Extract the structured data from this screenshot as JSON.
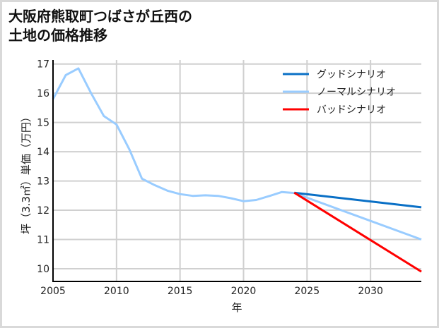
{
  "title_line1": "大阪府熊取町つばさが丘西の",
  "title_line2": "土地の価格推移",
  "chart_data": {
    "type": "line",
    "title": "大阪府熊取町つばさが丘西の土地の価格推移",
    "xlabel": "年",
    "ylabel": "坪（3.3㎡）単価（万円）",
    "xlim": [
      2005,
      2034
    ],
    "ylim": [
      9.6,
      17.2
    ],
    "xticks": [
      2005,
      2010,
      2015,
      2020,
      2025,
      2030
    ],
    "yticks": [
      10,
      11,
      12,
      13,
      14,
      15,
      16,
      17
    ],
    "grid": true,
    "legend_position": "upper right",
    "series": [
      {
        "name": "グッドシナリオ",
        "color": "#0a70c6",
        "x": [
          2024,
          2034
        ],
        "values": [
          12.6,
          12.1
        ]
      },
      {
        "name": "ノーマルシナリオ",
        "color": "#99ccff",
        "x": [
          2005,
          2006,
          2007,
          2008,
          2009,
          2010,
          2011,
          2012,
          2013,
          2014,
          2015,
          2016,
          2017,
          2018,
          2019,
          2020,
          2021,
          2022,
          2023,
          2024,
          2034
        ],
        "values": [
          15.8,
          16.62,
          16.85,
          16.0,
          15.22,
          14.93,
          14.09,
          13.08,
          12.86,
          12.67,
          12.55,
          12.49,
          12.51,
          12.49,
          12.41,
          12.31,
          12.35,
          12.48,
          12.62,
          12.59,
          11.0
        ]
      },
      {
        "name": "バッドシナリオ",
        "color": "#ff0000",
        "x": [
          2024,
          2034
        ],
        "values": [
          12.6,
          9.9
        ]
      }
    ]
  }
}
